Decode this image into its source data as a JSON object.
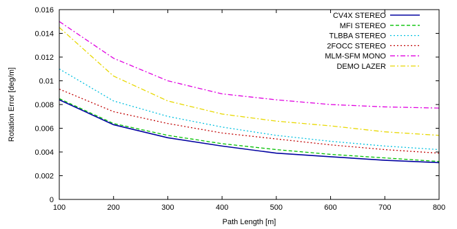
{
  "chart_data": {
    "type": "line",
    "xlabel": "Path Length [m]",
    "ylabel": "Rotation Error [deg/m]",
    "xlim": [
      100,
      800
    ],
    "ylim": [
      0,
      0.016
    ],
    "x_ticks": [
      "100",
      "200",
      "300",
      "400",
      "500",
      "600",
      "700",
      "800"
    ],
    "y_ticks": [
      "0",
      "0.002",
      "0.004",
      "0.006",
      "0.008",
      "0.01",
      "0.012",
      "0.014",
      "0.016"
    ],
    "grid": false,
    "legend_position": "top-right",
    "x": [
      100,
      200,
      300,
      400,
      500,
      600,
      700,
      800
    ],
    "series": [
      {
        "name": "CV4X STEREO",
        "color": "#0000a0",
        "dash": "solid",
        "values": [
          0.0084,
          0.0063,
          0.0052,
          0.0045,
          0.0039,
          0.0036,
          0.0033,
          0.0031
        ]
      },
      {
        "name": "MFI STEREO",
        "color": "#00c000",
        "dash": "dashed",
        "values": [
          0.0085,
          0.0064,
          0.0054,
          0.0047,
          0.0042,
          0.0038,
          0.0035,
          0.0032
        ]
      },
      {
        "name": "TLBBA STEREO",
        "color": "#00c0e0",
        "dash": "dotted",
        "values": [
          0.011,
          0.0083,
          0.007,
          0.0061,
          0.0054,
          0.0049,
          0.0045,
          0.0042
        ]
      },
      {
        "name": "2FOCC STEREO",
        "color": "#c00000",
        "dash": "dotted",
        "values": [
          0.0093,
          0.0074,
          0.0064,
          0.0056,
          0.0051,
          0.0046,
          0.0042,
          0.0039
        ]
      },
      {
        "name": "MLM-SFM MONO",
        "color": "#e000e0",
        "dash": "dashdot",
        "values": [
          0.015,
          0.0119,
          0.01,
          0.0089,
          0.0084,
          0.008,
          0.0078,
          0.0077
        ]
      },
      {
        "name": "DEMO LAZER",
        "color": "#e8d800",
        "dash": "dashdot",
        "values": [
          0.0145,
          0.0104,
          0.0083,
          0.0072,
          0.0066,
          0.0062,
          0.0057,
          0.0054
        ]
      }
    ]
  }
}
